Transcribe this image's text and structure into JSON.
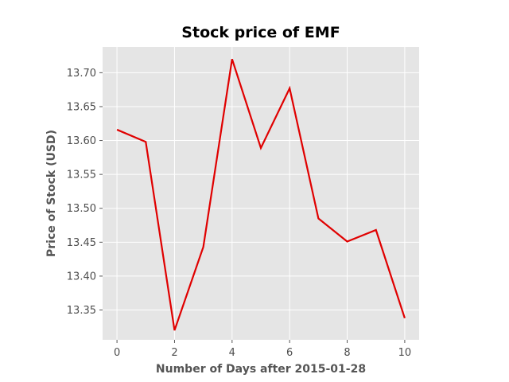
{
  "chart_data": {
    "type": "line",
    "title": "Stock price of EMF",
    "xlabel": "Number of Days after 2015-01-28",
    "ylabel": "Price of Stock (USD)",
    "x": [
      0,
      1,
      2,
      3,
      4,
      5,
      6,
      7,
      8,
      9,
      10
    ],
    "series": [
      {
        "values": [
          13.616,
          13.598,
          13.32,
          13.443,
          13.72,
          13.589,
          13.677,
          13.485,
          13.451,
          13.468,
          13.338
        ],
        "color": "#e00000"
      }
    ],
    "xlim": [
      -0.5,
      10.5
    ],
    "ylim": [
      13.306,
      13.738
    ],
    "xticks": [
      0,
      2,
      4,
      6,
      8,
      10
    ],
    "xtick_labels": [
      "0",
      "2",
      "4",
      "6",
      "8",
      "10"
    ],
    "yticks": [
      13.35,
      13.4,
      13.45,
      13.5,
      13.55,
      13.6,
      13.65,
      13.7
    ],
    "ytick_labels": [
      "13.35",
      "13.40",
      "13.45",
      "13.50",
      "13.55",
      "13.60",
      "13.65",
      "13.70"
    ],
    "grid": true,
    "background": "#e5e5e5",
    "grid_color": "#ffffff"
  }
}
